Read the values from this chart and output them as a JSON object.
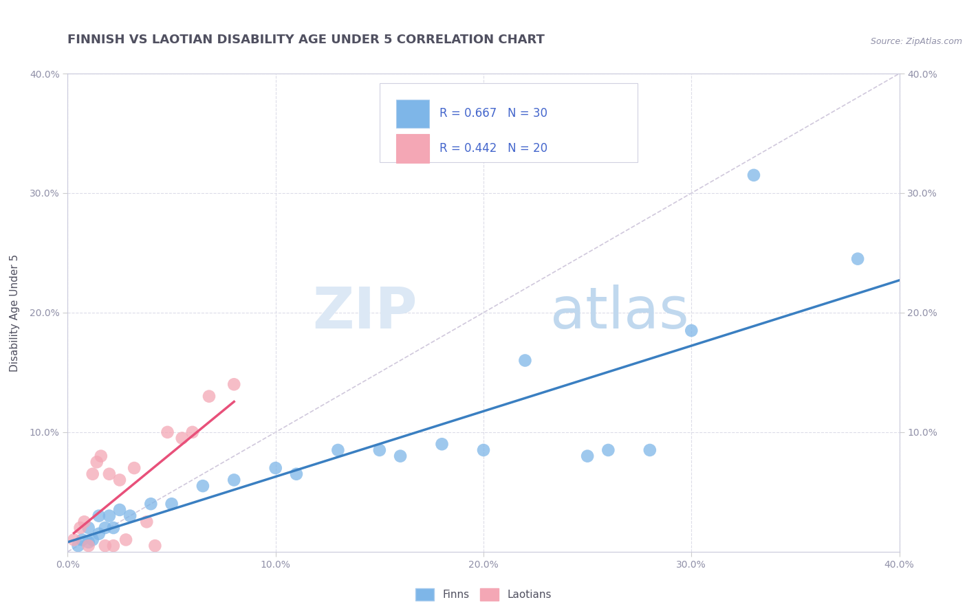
{
  "title": "FINNISH VS LAOTIAN DISABILITY AGE UNDER 5 CORRELATION CHART",
  "source": "Source: ZipAtlas.com",
  "ylabel": "Disability Age Under 5",
  "xlabel": "",
  "xlim": [
    0.0,
    0.4
  ],
  "ylim": [
    0.0,
    0.4
  ],
  "xtick_labels": [
    "0.0%",
    "10.0%",
    "20.0%",
    "30.0%",
    "40.0%"
  ],
  "xtick_vals": [
    0.0,
    0.1,
    0.2,
    0.3,
    0.4
  ],
  "ytick_labels": [
    "10.0%",
    "20.0%",
    "30.0%",
    "40.0%"
  ],
  "ytick_vals": [
    0.1,
    0.2,
    0.3,
    0.4
  ],
  "right_ytick_labels": [
    "10.0%",
    "20.0%",
    "30.0%",
    "40.0%"
  ],
  "right_ytick_vals": [
    0.1,
    0.2,
    0.3,
    0.4
  ],
  "finns_color": "#7eb6e8",
  "laotians_color": "#f4a7b5",
  "finns_line_color": "#3a7fc1",
  "laotians_line_color": "#e8507a",
  "diagonal_color": "#d0c8dc",
  "R_finns": 0.667,
  "N_finns": 30,
  "R_laotians": 0.442,
  "N_laotians": 20,
  "finns_x": [
    0.005,
    0.007,
    0.01,
    0.01,
    0.012,
    0.015,
    0.015,
    0.018,
    0.02,
    0.022,
    0.025,
    0.03,
    0.04,
    0.05,
    0.065,
    0.08,
    0.1,
    0.11,
    0.13,
    0.15,
    0.16,
    0.18,
    0.2,
    0.22,
    0.25,
    0.26,
    0.28,
    0.3,
    0.33,
    0.38
  ],
  "finns_y": [
    0.005,
    0.01,
    0.008,
    0.02,
    0.01,
    0.015,
    0.03,
    0.02,
    0.03,
    0.02,
    0.035,
    0.03,
    0.04,
    0.04,
    0.055,
    0.06,
    0.07,
    0.065,
    0.085,
    0.085,
    0.08,
    0.09,
    0.085,
    0.16,
    0.08,
    0.085,
    0.085,
    0.185,
    0.315,
    0.245
  ],
  "laotians_x": [
    0.003,
    0.006,
    0.008,
    0.01,
    0.012,
    0.014,
    0.016,
    0.018,
    0.02,
    0.022,
    0.025,
    0.028,
    0.032,
    0.038,
    0.042,
    0.048,
    0.055,
    0.06,
    0.068,
    0.08
  ],
  "laotians_y": [
    0.01,
    0.02,
    0.025,
    0.005,
    0.065,
    0.075,
    0.08,
    0.005,
    0.065,
    0.005,
    0.06,
    0.01,
    0.07,
    0.025,
    0.005,
    0.1,
    0.095,
    0.1,
    0.13,
    0.14
  ],
  "background_color": "#ffffff",
  "grid_color": "#dcdce8",
  "title_color": "#505060",
  "legend_text_color": "#4466cc",
  "watermark_zip_color": "#dce8f5",
  "watermark_atlas_color": "#c0d8ee",
  "title_fontsize": 13,
  "axis_label_fontsize": 11,
  "tick_fontsize": 10,
  "legend_fontsize": 12
}
